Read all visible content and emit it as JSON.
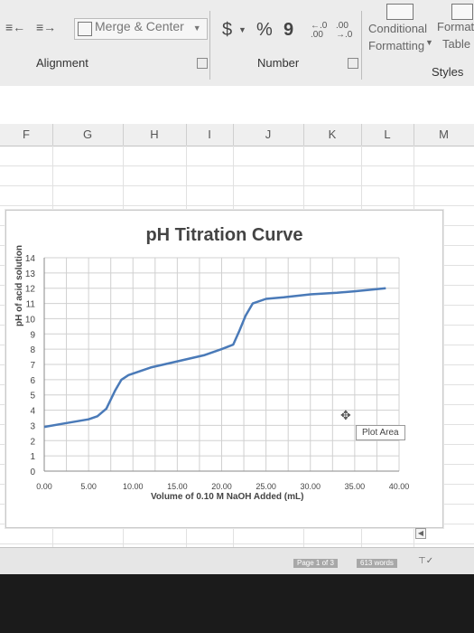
{
  "ribbon": {
    "merge_label": "Merge & Center",
    "number_symbols": {
      "currency": "$",
      "percent": "%",
      "comma": "9",
      "inc_decimal": "←.0\n.00",
      "dec_decimal": ".00\n→.0"
    },
    "conditional_line1": "Conditional",
    "conditional_line2": "Formatting",
    "format_label": "Format",
    "table_label": "Table",
    "groups": {
      "alignment": "Alignment",
      "number": "Number",
      "styles": "Styles"
    }
  },
  "columns": [
    "F",
    "G",
    "H",
    "I",
    "J",
    "K",
    "L",
    "M"
  ],
  "chart_data": {
    "type": "line",
    "title": "pH Titration Curve",
    "xlabel": "Volume of 0.10 M NaOH Added (mL)",
    "ylabel": "pH of acid solution",
    "xlim": [
      0,
      40
    ],
    "ylim": [
      0,
      14
    ],
    "x_ticks": [
      "0.00",
      "5.00",
      "10.00",
      "15.00",
      "20.00",
      "25.00",
      "30.00",
      "35.00",
      "40.00"
    ],
    "y_ticks": [
      "0",
      "1",
      "2",
      "3",
      "4",
      "5",
      "6",
      "7",
      "8",
      "9",
      "10",
      "11",
      "12",
      "13",
      "14"
    ],
    "grid": true,
    "series": [
      {
        "color": "#4a7ab8",
        "x": [
          0,
          2,
          5,
          6,
          7,
          8,
          8.7,
          9.5,
          10.5,
          12,
          15,
          18,
          20,
          21.3,
          22,
          22.7,
          23.5,
          25,
          27,
          30,
          33,
          35,
          38.5
        ],
        "y": [
          2.9,
          3.1,
          3.4,
          3.6,
          4.1,
          5.3,
          6.0,
          6.3,
          6.5,
          6.8,
          7.2,
          7.6,
          8.0,
          8.3,
          9.2,
          10.2,
          11.0,
          11.3,
          11.4,
          11.6,
          11.7,
          11.8,
          12.0
        ]
      }
    ]
  },
  "tooltip": "Plot Area",
  "status": {
    "page": "Page 1 of 3",
    "words": "613 words"
  }
}
